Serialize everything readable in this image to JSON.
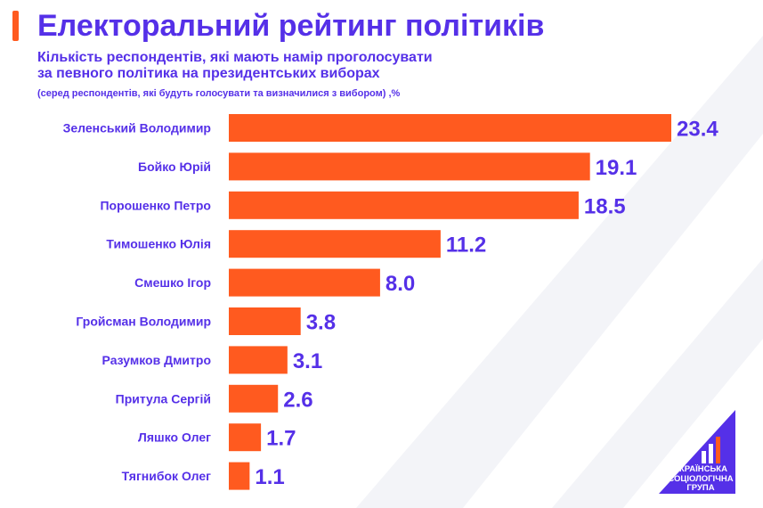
{
  "colors": {
    "title": "#5530e8",
    "bar": "#ff5a1f",
    "label": "#5530e8",
    "value": "#5530e8",
    "accent": "#ff5a1f",
    "logo": "#5530e8",
    "bg_shape": "#f3f4f8"
  },
  "header": {
    "title": "Електоральний рейтинг політиків",
    "subtitle_line1": "Кількість респондентів, які мають намір проголосувати",
    "subtitle_line2": "за певного політика на президентських виборах",
    "note": "(серед респондентів, які будуть голосувати та визначилися з вибором) ,%"
  },
  "logo": {
    "line1": "УКРАЇНСЬКА",
    "line2": "СОЦІОЛОГІЧНА",
    "line3": "ГРУПА"
  },
  "chart_data": {
    "type": "bar",
    "orientation": "horizontal",
    "title": "Електоральний рейтинг політиків",
    "xlabel": "",
    "ylabel": "",
    "unit": "%",
    "grid": false,
    "legend": "none",
    "xlim": [
      0,
      23.4
    ],
    "categories": [
      "Зеленський Володимир",
      "Бойко Юрій",
      "Порошенко Петро",
      "Тимошенко Юлія",
      "Смешко Ігор",
      "Гройсман Володимир",
      "Разумков Дмитро",
      "Притула Сергій",
      "Ляшко Олег",
      "Тягнибок Олег"
    ],
    "values": [
      23.4,
      19.1,
      18.5,
      11.2,
      8.0,
      3.8,
      3.1,
      2.6,
      1.7,
      1.1
    ],
    "value_labels": [
      "23.4",
      "19.1",
      "18.5",
      "11.2",
      "8.0",
      "3.8",
      "3.1",
      "2.6",
      "1.7",
      "1.1"
    ]
  }
}
